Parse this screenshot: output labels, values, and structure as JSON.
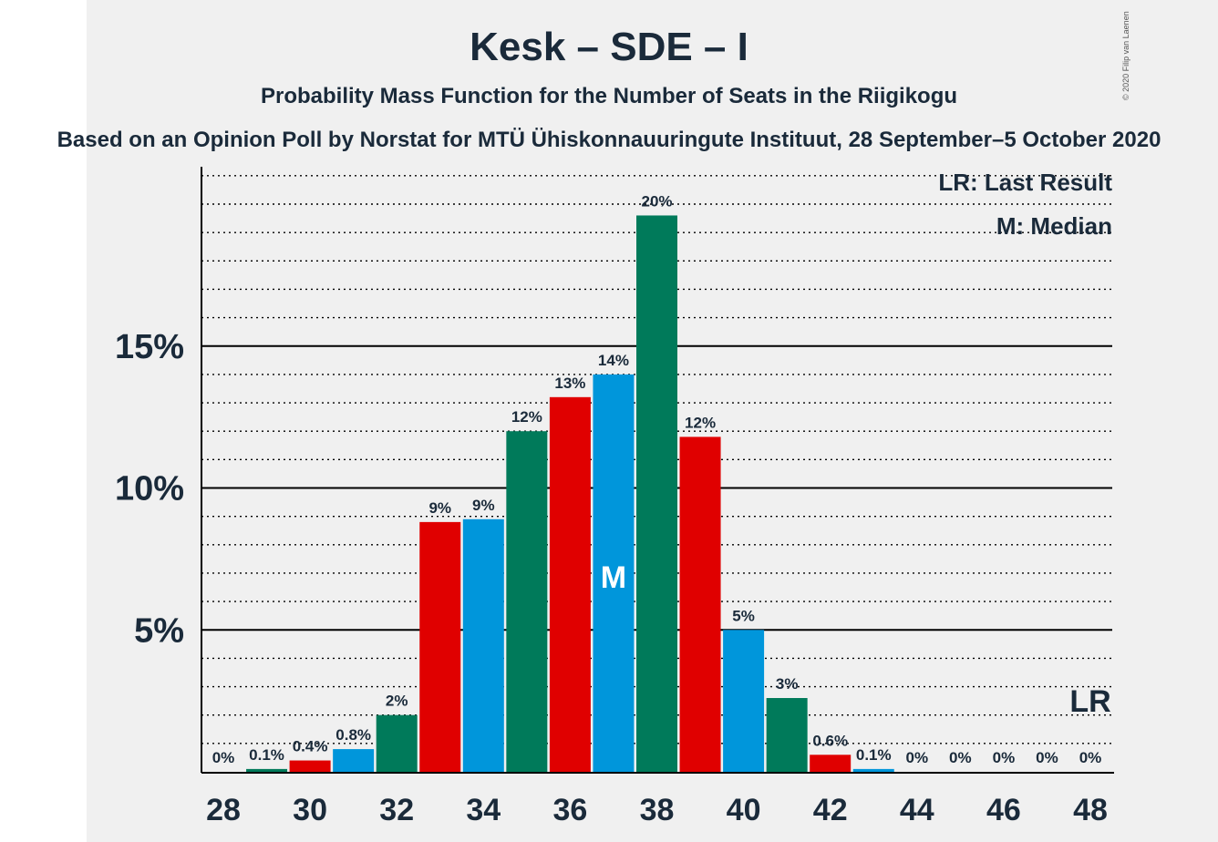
{
  "title": "Kesk – SDE – I",
  "subtitle": "Probability Mass Function for the Number of Seats in the Riigikogu",
  "subtitle2": "Based on an Opinion Poll by Norstat for MTÜ Ühiskonnauuringute Instituut, 28 September–5 October 2020",
  "copyright": "© 2020 Filip van Laenen",
  "legend": {
    "lr": "LR: Last Result",
    "median": "M: Median"
  },
  "markers": {
    "median_label": "M",
    "median_seat": 37,
    "lr_label": "LR",
    "lr_seat": 48
  },
  "colors": {
    "blue": "#0096db",
    "green": "#007a5a",
    "red": "#e00000",
    "text": "#1a2a3a"
  },
  "chart_data": {
    "type": "bar",
    "x": [
      28,
      29,
      30,
      31,
      32,
      33,
      34,
      35,
      36,
      37,
      38,
      39,
      40,
      41,
      42,
      43,
      44,
      45,
      46,
      47,
      48
    ],
    "values": [
      0,
      0.1,
      0.4,
      0.8,
      2.0,
      8.8,
      8.9,
      12.0,
      13.2,
      14.0,
      19.6,
      11.8,
      5.0,
      2.6,
      0.6,
      0.1,
      0,
      0,
      0,
      0,
      0
    ],
    "labels": [
      "0%",
      "0.1%",
      "0.4%",
      "0.8%",
      "2%",
      "9%",
      "9%",
      "12%",
      "13%",
      "14%",
      "20%",
      "12%",
      "5%",
      "3%",
      "0.6%",
      "0.1%",
      "0%",
      "0%",
      "0%",
      "0%",
      "0%"
    ],
    "color_cycle": [
      "blue",
      "green",
      "red"
    ],
    "x_tick_labels": [
      "28",
      "30",
      "32",
      "34",
      "36",
      "38",
      "40",
      "42",
      "44",
      "46",
      "48"
    ],
    "y_tick_labels": [
      "5%",
      "10%",
      "15%"
    ],
    "y_ticks": [
      5,
      10,
      15
    ],
    "ylim": [
      0,
      21.4
    ],
    "grid": "dotted every 1%, solid every 5%"
  }
}
